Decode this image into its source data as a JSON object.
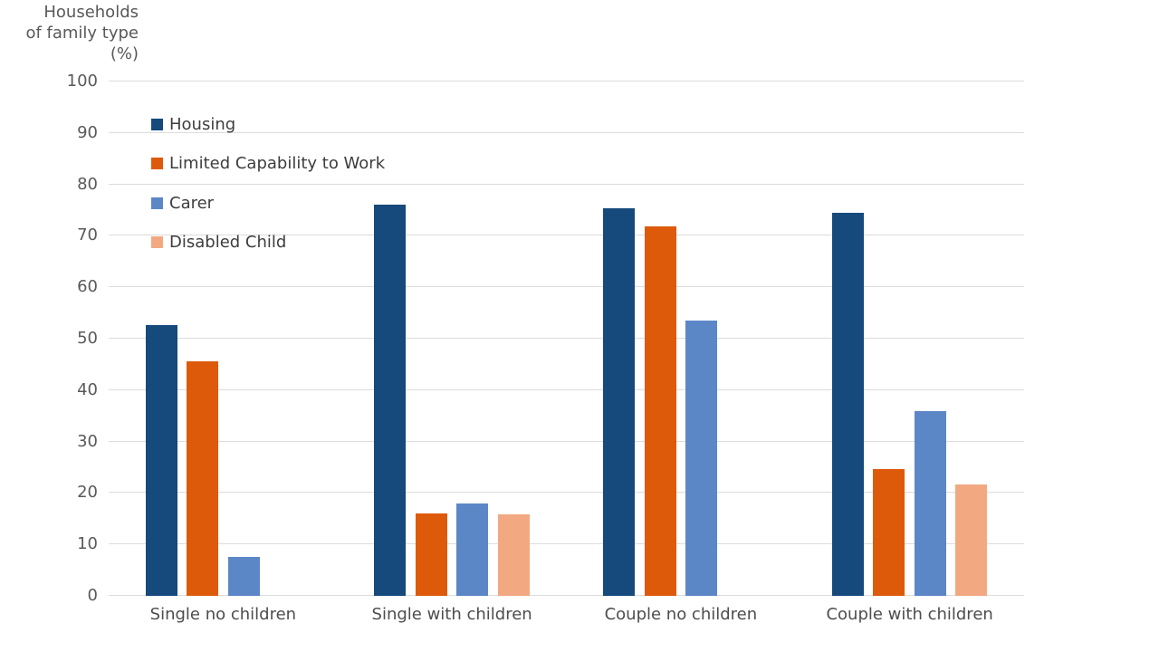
{
  "chart_data": {
    "type": "bar",
    "title": "",
    "ylabel": "Households of family type (%)",
    "ylabel_lines": [
      "Households",
      "of family type",
      "(%)"
    ],
    "xlabel": "",
    "categories": [
      "Single no children",
      "Single with children",
      "Couple no children",
      "Couple with children"
    ],
    "series": [
      {
        "name": "Housing",
        "color": "#16497C",
        "values": [
          52.6,
          76.0,
          75.3,
          74.4
        ]
      },
      {
        "name": "Limited Capability to Work",
        "color": "#DE5A0B",
        "values": [
          45.6,
          16.1,
          71.9,
          24.7
        ]
      },
      {
        "name": "Carer",
        "color": "#5C87C7",
        "values": [
          7.5,
          17.9,
          53.5,
          35.9
        ]
      },
      {
        "name": "Disabled Child",
        "color": "#F2A982",
        "values": [
          0,
          15.8,
          0,
          21.7
        ]
      }
    ],
    "ylim": [
      0,
      100
    ],
    "ytick_step": 10,
    "ytick_labels": [
      "0",
      "10",
      "20",
      "30",
      "40",
      "50",
      "60",
      "70",
      "80",
      "90",
      "100"
    ],
    "grid": true,
    "gridline_color": "#dcdcdc",
    "legend_position": "top-left-inside",
    "colors": {
      "axis_title_text": "#595959",
      "tick_text": "#595959",
      "category_text": "#4d4d4d",
      "legend_text": "#3d3d3d",
      "background": "#ffffff"
    }
  }
}
